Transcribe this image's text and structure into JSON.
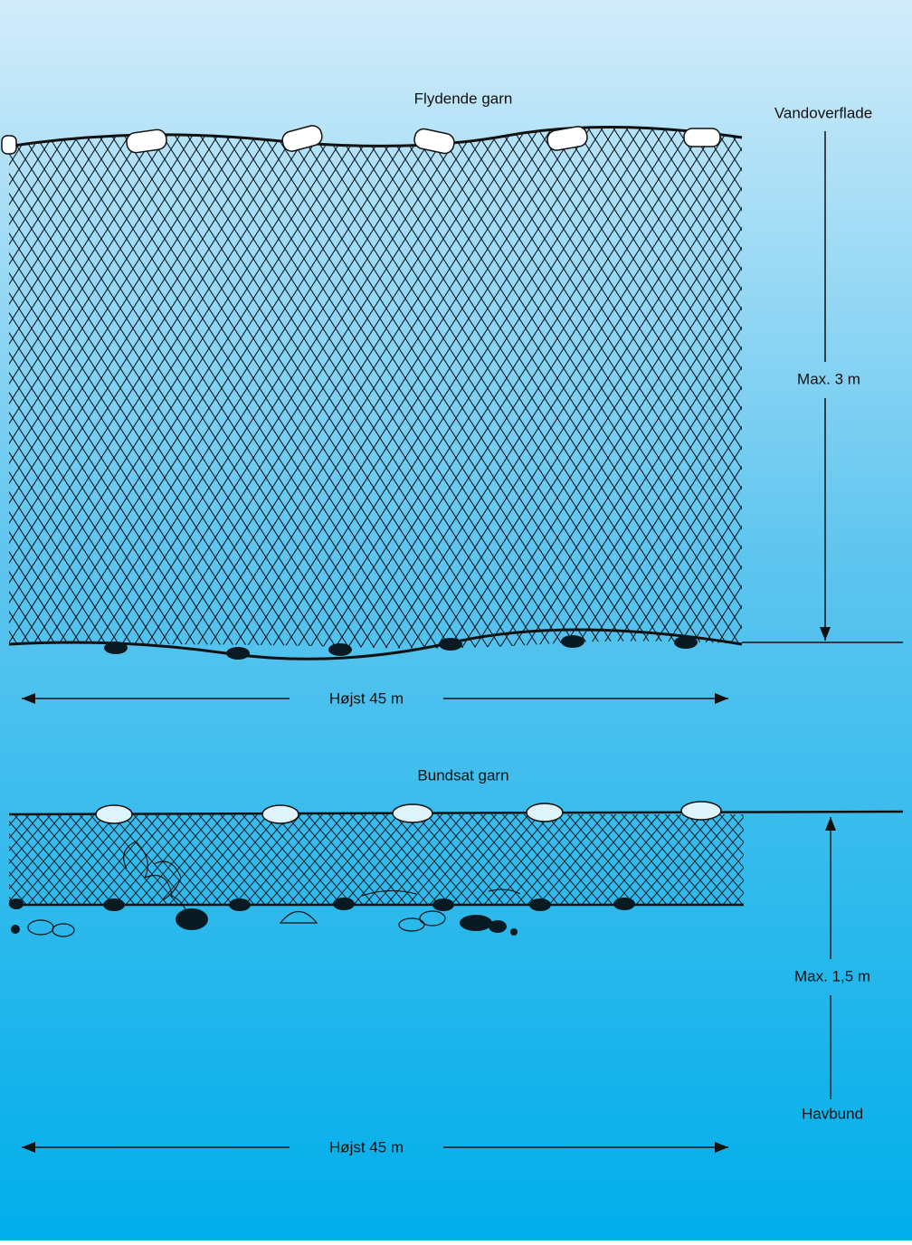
{
  "top": {
    "title": "Flydende garn",
    "surface_label": "Vandoverflade",
    "height_label": "Max. 3 m",
    "length_label": "Højst 45 m"
  },
  "bottom": {
    "title": "Bundsat garn",
    "height_label": "Max. 1,5 m",
    "seabed_label": "Havbund",
    "length_label": "Højst 45 m"
  }
}
